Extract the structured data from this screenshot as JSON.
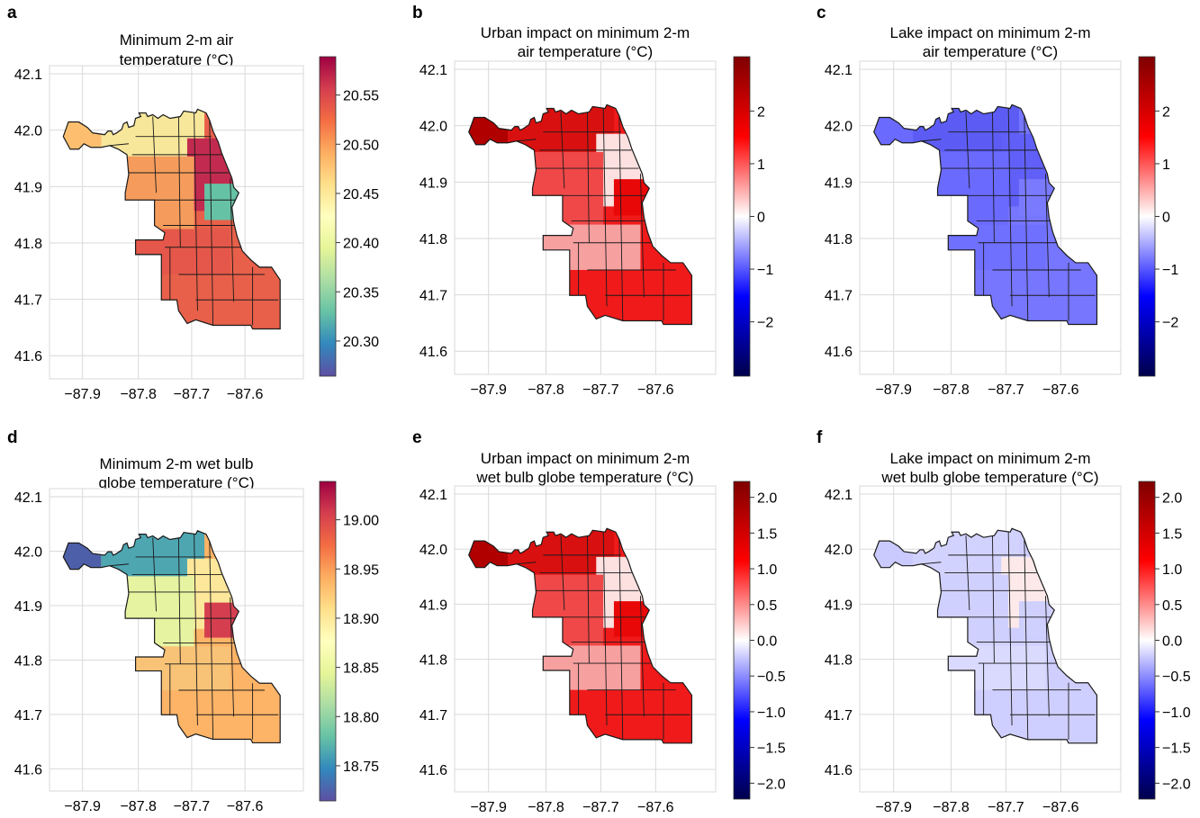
{
  "figure": {
    "panels": [
      {
        "letter": "a",
        "title": [
          "Minimum 2-m air",
          "temperature (°C)"
        ],
        "colormap": "Spectral_r",
        "colorbar": {
          "ticks": [
            "20.30",
            "20.35",
            "20.40",
            "20.45",
            "20.50",
            "20.55"
          ]
        },
        "x_ticks": [
          "−87.9",
          "−87.8",
          "−87.7",
          "−87.6"
        ],
        "y_ticks": [
          "41.6",
          "41.7",
          "41.8",
          "41.9",
          "42.0",
          "42.1"
        ]
      },
      {
        "letter": "b",
        "title": [
          "Urban impact on minimum 2-m",
          "air temperature (°C)"
        ],
        "colormap": "seismic",
        "colorbar": {
          "ticks": [
            "−2",
            "−1",
            "0",
            "1",
            "2"
          ]
        },
        "x_ticks": [
          "−87.9",
          "−87.8",
          "−87.7",
          "−87.6"
        ],
        "y_ticks": [
          "41.6",
          "41.7",
          "41.8",
          "41.9",
          "42.0",
          "42.1"
        ]
      },
      {
        "letter": "c",
        "title": [
          "Lake impact on minimum 2-m",
          "air temperature (°C)"
        ],
        "colormap": "seismic",
        "colorbar": {
          "ticks": [
            "−2",
            "−1",
            "0",
            "1",
            "2"
          ]
        },
        "x_ticks": [
          "−87.9",
          "−87.8",
          "−87.7",
          "−87.6"
        ],
        "y_ticks": [
          "41.6",
          "41.7",
          "41.8",
          "41.9",
          "42.0",
          "42.1"
        ]
      },
      {
        "letter": "d",
        "title": [
          "Minimum 2-m wet bulb",
          "globe temperature (°C)"
        ],
        "colormap": "Spectral_r",
        "colorbar": {
          "ticks": [
            "18.75",
            "18.80",
            "18.85",
            "18.90",
            "18.95",
            "19.00"
          ]
        },
        "x_ticks": [
          "−87.9",
          "−87.8",
          "−87.7",
          "−87.6"
        ],
        "y_ticks": [
          "41.6",
          "41.7",
          "41.8",
          "41.9",
          "42.0",
          "42.1"
        ]
      },
      {
        "letter": "e",
        "title": [
          "Urban impact on minimum 2-m",
          "wet bulb globe temperature (°C)"
        ],
        "colormap": "seismic",
        "colorbar": {
          "ticks": [
            "−2.0",
            "−1.5",
            "−1.0",
            "−0.5",
            "0.0",
            "0.5",
            "1.0",
            "1.5",
            "2.0"
          ]
        },
        "x_ticks": [
          "−87.9",
          "−87.8",
          "−87.7",
          "−87.6"
        ],
        "y_ticks": [
          "41.6",
          "41.7",
          "41.8",
          "41.9",
          "42.0",
          "42.1"
        ]
      },
      {
        "letter": "f",
        "title": [
          "Lake impact on minimum 2-m",
          "wet bulb globe temperature (°C)"
        ],
        "colormap": "seismic",
        "colorbar": {
          "ticks": [
            "−2.0",
            "−1.5",
            "−1.0",
            "−0.5",
            "0.0",
            "0.5",
            "1.0",
            "1.5",
            "2.0"
          ]
        },
        "x_ticks": [
          "−87.9",
          "−87.8",
          "−87.7",
          "−87.6"
        ],
        "y_ticks": [
          "41.6",
          "41.7",
          "41.8",
          "41.9",
          "42.0",
          "42.1"
        ]
      }
    ],
    "colors": {
      "grid": "#d9d9d9",
      "outline": "#1a1a1a",
      "spectral_r": [
        "#5e4fa2",
        "#3288bd",
        "#66c2a5",
        "#abdda4",
        "#e6f598",
        "#ffffbf",
        "#fee08b",
        "#fdae61",
        "#f46d43",
        "#d53e4f",
        "#9e0142"
      ],
      "seismic": [
        "#00004c",
        "#0000ff",
        "#ffffff",
        "#ff0000",
        "#7f0000"
      ]
    }
  }
}
